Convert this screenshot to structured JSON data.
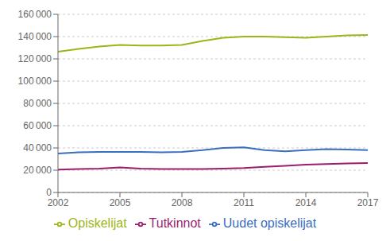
{
  "chart_data": {
    "type": "line",
    "x": [
      2002,
      2003,
      2004,
      2005,
      2006,
      2007,
      2008,
      2009,
      2010,
      2011,
      2012,
      2013,
      2014,
      2015,
      2016,
      2017
    ],
    "series": [
      {
        "name": "Uudet opiskelijat",
        "color": "#3a6ebf",
        "values": [
          35000,
          36000,
          36500,
          36500,
          36500,
          36000,
          36500,
          38000,
          40000,
          40500,
          38000,
          37000,
          38000,
          39000,
          38500,
          38000
        ]
      },
      {
        "name": "Opiskelijat",
        "color": "#9db517",
        "values": [
          126500,
          129000,
          131000,
          132500,
          132000,
          132000,
          132500,
          136000,
          139000,
          140000,
          140000,
          139500,
          139000,
          140000,
          141000,
          141500
        ]
      },
      {
        "name": "Tutkinnot",
        "color": "#9b1d6e",
        "values": [
          20500,
          21000,
          21500,
          22500,
          21500,
          21000,
          21000,
          21000,
          21500,
          22000,
          23000,
          24000,
          25000,
          25500,
          26000,
          26500
        ]
      }
    ],
    "xlim": [
      2002,
      2017
    ],
    "xticks": [
      2002,
      2005,
      2008,
      2011,
      2014,
      2017
    ],
    "ylim": [
      0,
      160000
    ],
    "yticks": [
      0,
      {
        "value": 20000,
        "label": "20 000"
      },
      {
        "value": 40000,
        "label": "40 000"
      },
      {
        "value": 60000,
        "label": "60 000"
      },
      {
        "value": 80000,
        "label": "80 000"
      },
      {
        "value": 100000,
        "label": "100 000"
      },
      {
        "value": 120000,
        "label": "120 000"
      },
      {
        "value": 140000,
        "label": "140 000"
      },
      {
        "value": 160000,
        "label": "160 000"
      }
    ],
    "grid": true,
    "legend": "bottom"
  }
}
